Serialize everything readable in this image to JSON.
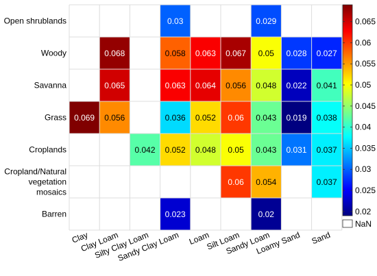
{
  "chart_data": {
    "type": "heatmap",
    "title": "",
    "xlabel": "",
    "ylabel": "",
    "x_categories": [
      "Clay",
      "Clay Loam",
      "Silty Clay Loam",
      "Sandy Clay Loam",
      "Loam",
      "Silt Loam",
      "Sandy Loam",
      "Loamy Sand",
      "Sand"
    ],
    "y_categories": [
      "Open shrublands",
      "Woody",
      "Savanna",
      "Grass",
      "Croplands",
      "Cropland/Natural vegetation mosaics",
      "Barren"
    ],
    "values": [
      [
        null,
        null,
        null,
        0.03,
        null,
        null,
        0.029,
        null,
        null
      ],
      [
        null,
        0.068,
        null,
        0.058,
        0.063,
        0.067,
        0.05,
        0.028,
        0.027
      ],
      [
        null,
        0.065,
        null,
        0.063,
        0.064,
        0.056,
        0.048,
        0.022,
        0.041
      ],
      [
        0.069,
        0.056,
        null,
        0.036,
        0.052,
        0.06,
        0.043,
        0.019,
        0.038
      ],
      [
        null,
        null,
        0.042,
        0.052,
        0.048,
        0.05,
        0.043,
        0.031,
        0.037
      ],
      [
        null,
        null,
        null,
        null,
        null,
        0.06,
        0.054,
        null,
        0.037
      ],
      [
        null,
        null,
        null,
        0.023,
        null,
        null,
        0.02,
        null,
        null
      ]
    ],
    "colorbar": {
      "range": [
        0.019,
        0.069
      ],
      "ticks": [
        "0.02",
        "0.025",
        "0.03",
        "0.035",
        "0.04",
        "0.045",
        "0.05",
        "0.055",
        "0.06",
        "0.065"
      ],
      "colormap": "jet",
      "nan_label": "NaN",
      "nan_color": "#ffffff"
    },
    "grid": true
  }
}
